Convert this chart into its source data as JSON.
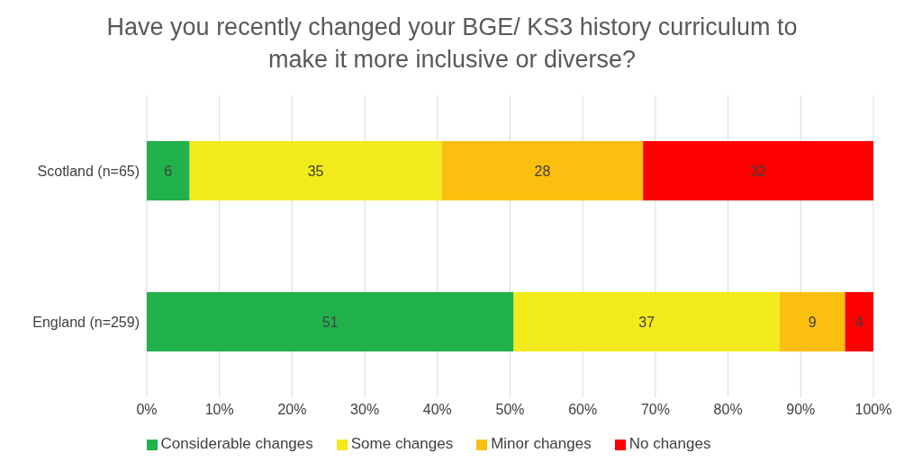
{
  "chart_data": {
    "type": "bar",
    "orientation": "horizontal",
    "stacked": true,
    "title": "Have you recently changed your BGE/ KS3 history curriculum to make it more inclusive or diverse?",
    "categories": [
      "Scotland (n=65)",
      "England (n=259)"
    ],
    "series": [
      {
        "name": "Considerable changes",
        "color": "#21b24b",
        "values": [
          5.9,
          50.5
        ],
        "value_labels": [
          "6",
          "51"
        ]
      },
      {
        "name": "Some changes",
        "color": "#f2ea1a",
        "values": [
          34.7,
          36.6
        ],
        "value_labels": [
          "35",
          "37"
        ]
      },
      {
        "name": "Minor changes",
        "color": "#fbbf10",
        "values": [
          27.7,
          9.0
        ],
        "value_labels": [
          "28",
          "9"
        ]
      },
      {
        "name": "No changes",
        "color": "#ff0000",
        "values": [
          31.7,
          3.9
        ],
        "value_labels": [
          "32",
          "4"
        ]
      }
    ],
    "xlim": [
      0,
      100
    ],
    "xticks": [
      {
        "value": 0,
        "label": "0%"
      },
      {
        "value": 10,
        "label": "10%"
      },
      {
        "value": 20,
        "label": "20%"
      },
      {
        "value": 30,
        "label": "30%"
      },
      {
        "value": 40,
        "label": "40%"
      },
      {
        "value": 50,
        "label": "50%"
      },
      {
        "value": 60,
        "label": "60%"
      },
      {
        "value": 70,
        "label": "70%"
      },
      {
        "value": 80,
        "label": "80%"
      },
      {
        "value": 90,
        "label": "90%"
      },
      {
        "value": 100,
        "label": "100%"
      }
    ],
    "grid": "x",
    "legend": "bottom"
  }
}
